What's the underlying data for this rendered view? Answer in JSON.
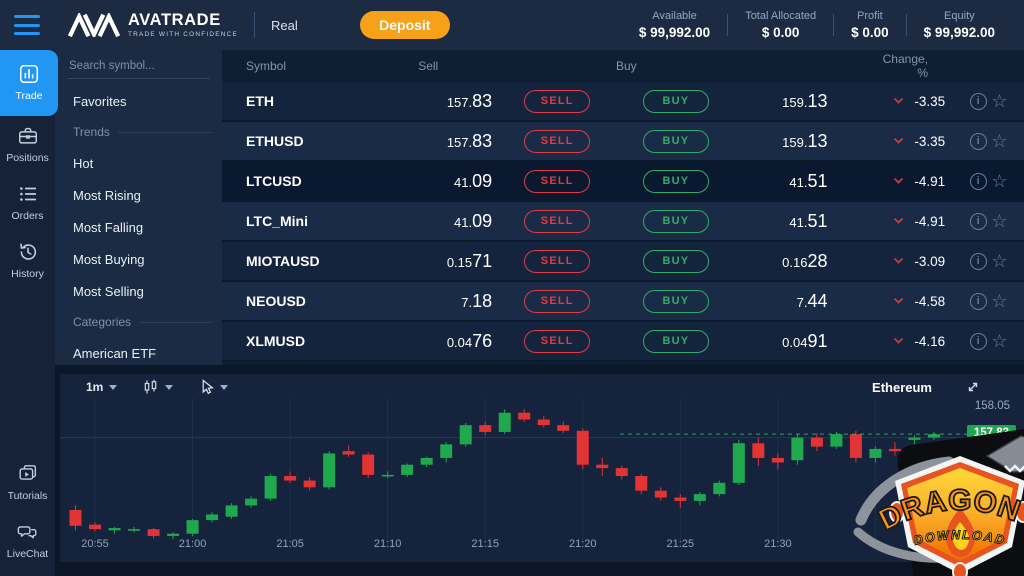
{
  "topbar": {
    "brand": {
      "name": "AVATRADE",
      "tagline": "TRADE WITH CONFIDENCE"
    },
    "account_type": "Real",
    "deposit_label": "Deposit",
    "stats": [
      {
        "label": "Available",
        "value": "$ 99,992.00"
      },
      {
        "label": "Total Allocated",
        "value": "$ 0.00"
      },
      {
        "label": "Profit",
        "value": "$ 0.00"
      },
      {
        "label": "Equity",
        "value": "$ 99,992.00"
      }
    ]
  },
  "sidebar": {
    "items": [
      {
        "label": "Trade",
        "icon": "chart-icon",
        "active": true
      },
      {
        "label": "Positions",
        "icon": "briefcase-icon",
        "active": false
      },
      {
        "label": "Orders",
        "icon": "orders-icon",
        "active": false
      },
      {
        "label": "History",
        "icon": "history-icon",
        "active": false
      }
    ],
    "bottom_items": [
      {
        "label": "Tutorials",
        "icon": "tutorials-icon"
      },
      {
        "label": "LiveChat",
        "icon": "livechat-icon"
      }
    ]
  },
  "watchlist": {
    "search_placeholder": "Search symbol...",
    "items": [
      {
        "label": "Favorites",
        "type": "item"
      },
      {
        "label": "Trends",
        "type": "section"
      },
      {
        "label": "Hot",
        "type": "item"
      },
      {
        "label": "Most Rising",
        "type": "item"
      },
      {
        "label": "Most Falling",
        "type": "item"
      },
      {
        "label": "Most Buying",
        "type": "item"
      },
      {
        "label": "Most Selling",
        "type": "item"
      },
      {
        "label": "Categories",
        "type": "section"
      },
      {
        "label": "American ETF",
        "type": "item"
      }
    ]
  },
  "market_table": {
    "headers": {
      "symbol": "Symbol",
      "sell": "Sell",
      "buy": "Buy",
      "change": "Change, %"
    },
    "sell_label": "SELL",
    "buy_label": "BUY",
    "rows": [
      {
        "symbol": "ETH",
        "sell_base": "157.",
        "sell_big": "83",
        "buy_base": "159.",
        "buy_big": "13",
        "change": "-3.35",
        "shade": "dark"
      },
      {
        "symbol": "ETHUSD",
        "sell_base": "157.",
        "sell_big": "83",
        "buy_base": "159.",
        "buy_big": "13",
        "change": "-3.35",
        "shade": "light"
      },
      {
        "symbol": "LTCUSD",
        "sell_base": "41.",
        "sell_big": "09",
        "buy_base": "41.",
        "buy_big": "51",
        "change": "-4.91",
        "shade": "darkest"
      },
      {
        "symbol": "LTC_Mini",
        "sell_base": "41.",
        "sell_big": "09",
        "buy_base": "41.",
        "buy_big": "51",
        "change": "-4.91",
        "shade": "light"
      },
      {
        "symbol": "MIOTAUSD",
        "sell_base": "0.15",
        "sell_big": "71",
        "buy_base": "0.16",
        "buy_big": "28",
        "change": "-3.09",
        "shade": "dark"
      },
      {
        "symbol": "NEOUSD",
        "sell_base": "7.",
        "sell_big": "18",
        "buy_base": "7.",
        "buy_big": "44",
        "change": "-4.58",
        "shade": "light"
      },
      {
        "symbol": "XLMUSD",
        "sell_base": "0.04",
        "sell_big": "76",
        "buy_base": "0.04",
        "buy_big": "91",
        "change": "-4.16",
        "shade": "dark"
      }
    ]
  },
  "chart_panel": {
    "timeframe": "1m",
    "symbol_label": "Ethereum",
    "axis_price_label": "158.05",
    "current_price_label": "157.83"
  },
  "chart_data": {
    "type": "candlestick",
    "symbol": "Ethereum",
    "timeframe": "1m",
    "x_labels": [
      "20:55",
      "21:00",
      "21:05",
      "21:10",
      "21:15",
      "21:20",
      "21:25",
      "21:30"
    ],
    "y_range": [
      156.85,
      158.15
    ],
    "gridline_price": 157.8,
    "axis_tick_price": 158.05,
    "current_price": 157.83,
    "candles": [
      [
        157.16,
        157.2,
        156.98,
        157.02
      ],
      [
        157.03,
        157.05,
        156.97,
        156.99
      ],
      [
        156.98,
        157.01,
        156.95,
        157.0
      ],
      [
        156.99,
        157.01,
        156.96,
        156.99
      ],
      [
        156.99,
        157.0,
        156.91,
        156.93
      ],
      [
        156.93,
        156.96,
        156.9,
        156.95
      ],
      [
        156.95,
        157.08,
        156.93,
        157.07
      ],
      [
        157.07,
        157.14,
        157.05,
        157.12
      ],
      [
        157.1,
        157.22,
        157.08,
        157.2
      ],
      [
        157.2,
        157.28,
        157.18,
        157.26
      ],
      [
        157.26,
        157.48,
        157.24,
        157.46
      ],
      [
        157.46,
        157.5,
        157.4,
        157.42
      ],
      [
        157.42,
        157.45,
        157.33,
        157.36
      ],
      [
        157.36,
        157.68,
        157.34,
        157.66
      ],
      [
        157.68,
        157.73,
        157.63,
        157.65
      ],
      [
        157.65,
        157.67,
        157.44,
        157.47
      ],
      [
        157.47,
        157.5,
        157.44,
        157.47
      ],
      [
        157.47,
        157.57,
        157.45,
        157.56
      ],
      [
        157.56,
        157.63,
        157.54,
        157.62
      ],
      [
        157.62,
        157.76,
        157.58,
        157.74
      ],
      [
        157.74,
        157.93,
        157.72,
        157.91
      ],
      [
        157.91,
        157.94,
        157.82,
        157.85
      ],
      [
        157.85,
        158.05,
        157.83,
        158.02
      ],
      [
        158.02,
        158.05,
        157.94,
        157.96
      ],
      [
        157.96,
        157.99,
        157.89,
        157.91
      ],
      [
        157.91,
        157.94,
        157.84,
        157.86
      ],
      [
        157.86,
        157.88,
        157.52,
        157.56
      ],
      [
        157.56,
        157.62,
        157.46,
        157.53
      ],
      [
        157.53,
        157.55,
        157.43,
        157.46
      ],
      [
        157.46,
        157.48,
        157.3,
        157.33
      ],
      [
        157.33,
        157.36,
        157.24,
        157.27
      ],
      [
        157.27,
        157.3,
        157.18,
        157.24
      ],
      [
        157.24,
        157.32,
        157.2,
        157.3
      ],
      [
        157.3,
        157.42,
        157.28,
        157.4
      ],
      [
        157.4,
        157.78,
        157.38,
        157.75
      ],
      [
        157.75,
        157.8,
        157.55,
        157.62
      ],
      [
        157.62,
        157.66,
        157.52,
        157.58
      ],
      [
        157.6,
        157.83,
        157.56,
        157.8
      ],
      [
        157.8,
        157.84,
        157.68,
        157.72
      ],
      [
        157.72,
        157.85,
        157.7,
        157.83
      ],
      [
        157.83,
        157.86,
        157.58,
        157.62
      ],
      [
        157.62,
        157.72,
        157.58,
        157.7
      ],
      [
        157.7,
        157.76,
        157.64,
        157.68
      ],
      [
        157.78,
        157.82,
        157.74,
        157.8
      ],
      [
        157.8,
        157.85,
        157.78,
        157.83
      ]
    ]
  },
  "watermark": {
    "line1": "DRAGONS",
    "line2": "DOWNLOAD"
  },
  "colors": {
    "accent": "#2196f3",
    "deposit": "#f7a119",
    "sell": "#e23b45",
    "buy": "#2fae67",
    "candle_up": "#20a84e",
    "candle_down": "#e23434",
    "badge": "#21a453",
    "topbar_bg": "#1c2b42",
    "panel_bg": "#15233c"
  }
}
